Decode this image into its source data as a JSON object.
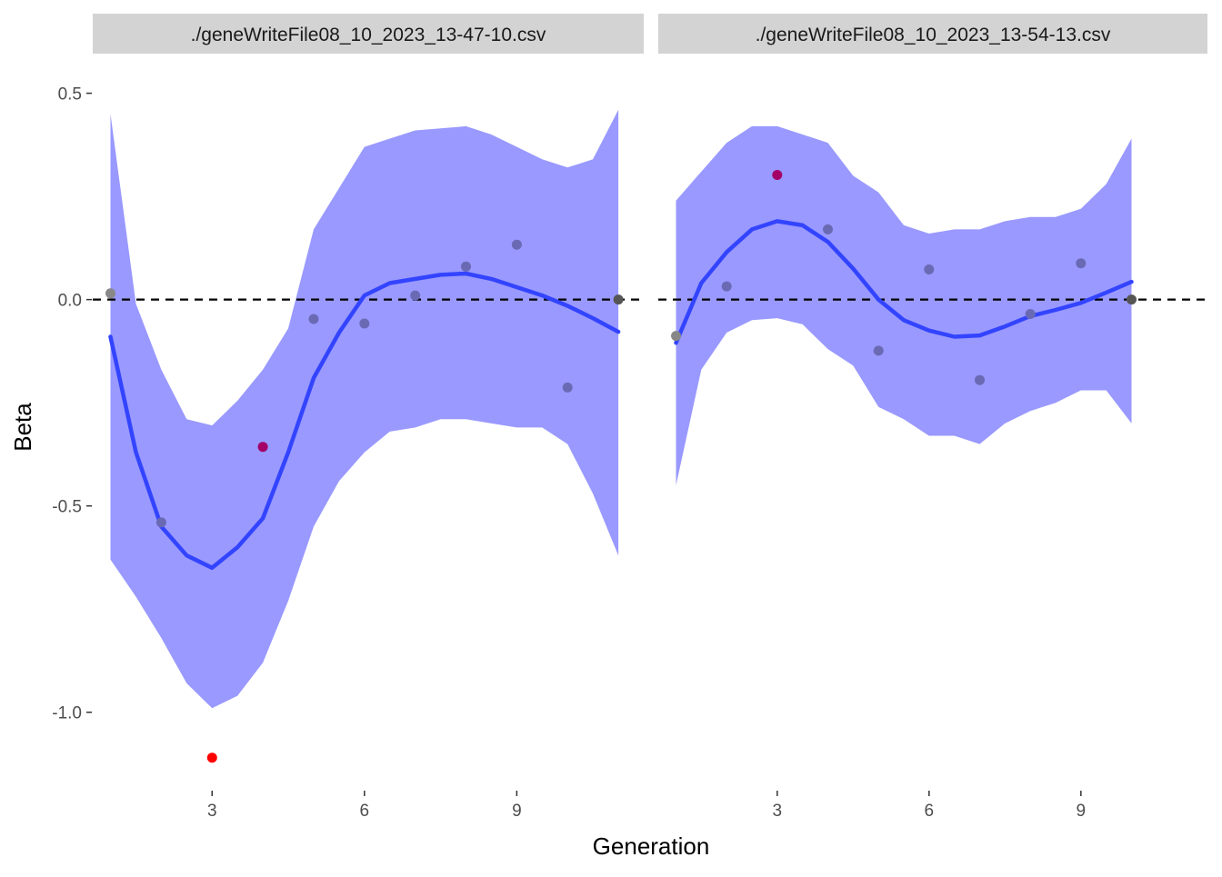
{
  "chart_data": {
    "type": "line",
    "xlabel": "Generation",
    "ylabel": "Beta",
    "x_ticks": [
      3,
      6,
      9
    ],
    "y_ticks": [
      "0.5",
      "0.0",
      "-0.5",
      "-1.0"
    ],
    "y_tick_values": [
      0.5,
      0.0,
      -0.5,
      -1.0
    ],
    "xlim": [
      0.65,
      11.5
    ],
    "ylim": [
      -1.19,
      0.585
    ],
    "grid": false,
    "reference_line": {
      "y": 0,
      "style": "dashed",
      "color": "#000000"
    },
    "colors": {
      "smooth_line": "#3344ff",
      "ribbon": "#9999ff",
      "strip_background": "#d3d3d3"
    },
    "panels": [
      {
        "title": "./geneWriteFile08_10_2023_13-47-10.csv",
        "points": [
          {
            "x": 1,
            "y": 0.015,
            "color": "#888888"
          },
          {
            "x": 2,
            "y": -0.54,
            "color": "#6a6ab4"
          },
          {
            "x": 3,
            "y": -1.11,
            "color": "#ff0000"
          },
          {
            "x": 4,
            "y": -0.357,
            "color": "#a3006a"
          },
          {
            "x": 5,
            "y": -0.047,
            "color": "#6a6ab4"
          },
          {
            "x": 6,
            "y": -0.058,
            "color": "#6a6ab4"
          },
          {
            "x": 7,
            "y": 0.01,
            "color": "#6a6ab4"
          },
          {
            "x": 8,
            "y": 0.08,
            "color": "#6a6ab4"
          },
          {
            "x": 9,
            "y": 0.133,
            "color": "#6a6ab4"
          },
          {
            "x": 10,
            "y": -0.213,
            "color": "#6a6ab4"
          },
          {
            "x": 11,
            "y": 0.0,
            "color": "#555555"
          }
        ],
        "smooth": {
          "x": [
            1,
            1.5,
            2,
            2.5,
            3,
            3.5,
            4,
            4.5,
            5,
            5.5,
            6,
            6.5,
            7,
            7.5,
            8,
            8.5,
            9,
            9.5,
            10,
            10.5,
            11
          ],
          "y": [
            -0.09,
            -0.37,
            -0.55,
            -0.62,
            -0.65,
            -0.6,
            -0.53,
            -0.37,
            -0.19,
            -0.08,
            0.01,
            0.04,
            0.05,
            0.06,
            0.063,
            0.05,
            0.03,
            0.01,
            -0.015,
            -0.045,
            -0.078
          ],
          "lower": [
            -0.63,
            -0.72,
            -0.82,
            -0.93,
            -0.99,
            -0.96,
            -0.88,
            -0.73,
            -0.55,
            -0.44,
            -0.37,
            -0.32,
            -0.31,
            -0.29,
            -0.29,
            -0.3,
            -0.31,
            -0.31,
            -0.35,
            -0.47,
            -0.62
          ],
          "upper": [
            0.45,
            -0.01,
            -0.17,
            -0.29,
            -0.305,
            -0.245,
            -0.17,
            -0.07,
            0.17,
            0.27,
            0.37,
            0.39,
            0.41,
            0.415,
            0.42,
            0.4,
            0.37,
            0.34,
            0.32,
            0.34,
            0.46
          ]
        }
      },
      {
        "title": "./geneWriteFile08_10_2023_13-54-13.csv",
        "points": [
          {
            "x": 1,
            "y": -0.088,
            "color": "#888888"
          },
          {
            "x": 2,
            "y": 0.032,
            "color": "#6a6ab4"
          },
          {
            "x": 3,
            "y": 0.302,
            "color": "#a3006a"
          },
          {
            "x": 4,
            "y": 0.17,
            "color": "#6a6ab4"
          },
          {
            "x": 5,
            "y": -0.124,
            "color": "#6a6ab4"
          },
          {
            "x": 6,
            "y": 0.073,
            "color": "#6a6ab4"
          },
          {
            "x": 7,
            "y": -0.195,
            "color": "#6a6ab4"
          },
          {
            "x": 8,
            "y": -0.035,
            "color": "#6a6ab4"
          },
          {
            "x": 9,
            "y": 0.088,
            "color": "#6a6ab4"
          },
          {
            "x": 10,
            "y": 0.0,
            "color": "#555555"
          }
        ],
        "smooth": {
          "x": [
            1,
            1.5,
            2,
            2.5,
            3,
            3.5,
            4,
            4.5,
            5,
            5.5,
            6,
            6.5,
            7,
            7.5,
            8,
            8.5,
            9,
            9.5,
            10
          ],
          "y": [
            -0.105,
            0.04,
            0.115,
            0.17,
            0.19,
            0.18,
            0.14,
            0.075,
            0.0,
            -0.05,
            -0.075,
            -0.09,
            -0.087,
            -0.065,
            -0.04,
            -0.025,
            -0.008,
            0.017,
            0.043
          ],
          "lower": [
            -0.45,
            -0.17,
            -0.08,
            -0.05,
            -0.045,
            -0.06,
            -0.12,
            -0.16,
            -0.26,
            -0.29,
            -0.33,
            -0.33,
            -0.35,
            -0.3,
            -0.27,
            -0.25,
            -0.22,
            -0.22,
            -0.3
          ],
          "upper": [
            0.24,
            0.31,
            0.38,
            0.42,
            0.42,
            0.4,
            0.38,
            0.3,
            0.26,
            0.18,
            0.16,
            0.17,
            0.17,
            0.19,
            0.2,
            0.2,
            0.22,
            0.28,
            0.39
          ]
        }
      }
    ]
  }
}
